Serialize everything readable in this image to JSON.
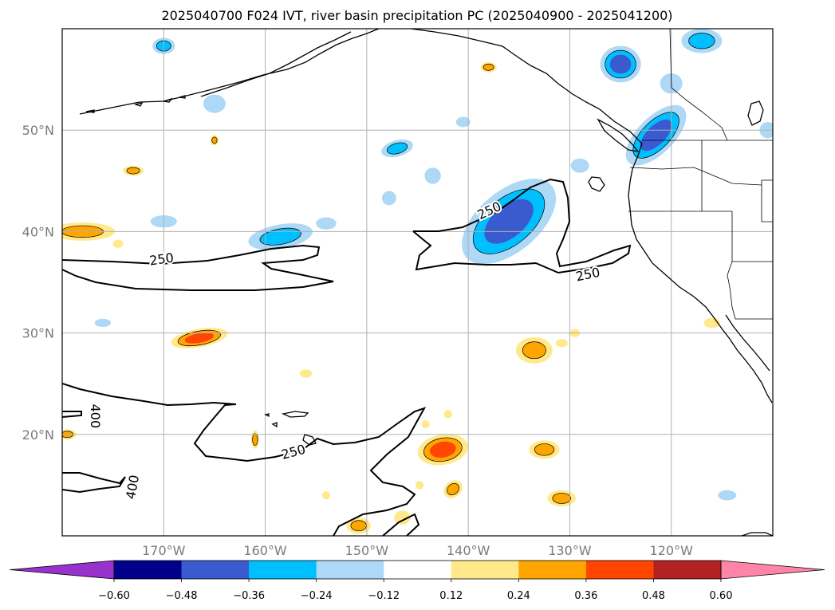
{
  "title": "2025040700 F024 IVT, river basin precipitation PC (2025040900 - 2025041200)",
  "map": {
    "lon_range": [
      -180,
      -110
    ],
    "lat_range": [
      10,
      60
    ],
    "lon_ticks": [
      {
        "value": -170,
        "label": "170°W"
      },
      {
        "value": -160,
        "label": "160°W"
      },
      {
        "value": -150,
        "label": "150°W"
      },
      {
        "value": -140,
        "label": "140°W"
      },
      {
        "value": -130,
        "label": "130°W"
      },
      {
        "value": -120,
        "label": "120°W"
      }
    ],
    "lat_ticks": [
      {
        "value": 50,
        "label": "50°N"
      },
      {
        "value": 40,
        "label": "40°N"
      },
      {
        "value": 30,
        "label": "30°N"
      },
      {
        "value": 20,
        "label": "20°N"
      }
    ],
    "contour_labels": [
      {
        "text": "250",
        "lon": -170.2,
        "lat": 37.2,
        "angle": -8
      },
      {
        "text": "250",
        "lon": -137.9,
        "lat": 42.0,
        "angle": -25
      },
      {
        "text": "250",
        "lon": -128.2,
        "lat": 35.7,
        "angle": -12
      },
      {
        "text": "250",
        "lon": -157.2,
        "lat": 18.2,
        "angle": -15
      },
      {
        "text": "400",
        "lon": -176.8,
        "lat": 21.8,
        "angle": 90
      },
      {
        "text": "400",
        "lon": -173.0,
        "lat": 14.8,
        "angle": -80
      }
    ]
  },
  "colorbar": {
    "ticks": [
      "−0.60",
      "−0.48",
      "−0.36",
      "−0.24",
      "−0.12",
      "0.12",
      "0.24",
      "0.36",
      "0.48",
      "0.60"
    ],
    "colors": [
      "#9932cc",
      "#00008b",
      "#3a5bd0",
      "#00bfff",
      "#add8f6",
      "#ffffff",
      "#ffe98a",
      "#ffa500",
      "#ff4500",
      "#b22222",
      "#ff85a8"
    ]
  },
  "chart_data": {
    "type": "heatmap",
    "title": "2025040700 F024 IVT, river basin precipitation PC (2025040900 - 2025041200)",
    "x_range": [
      -180,
      -110
    ],
    "y_range": [
      10,
      60
    ],
    "contour_levels_labeled": [
      250,
      400
    ],
    "colorbar_levels": [
      -0.6,
      -0.48,
      -0.36,
      -0.24,
      -0.12,
      0.12,
      0.24,
      0.36,
      0.48,
      0.6
    ],
    "features": [
      {
        "sign": "negative",
        "lon": -136,
        "lat": 41,
        "rx": 5.5,
        "ry": 3,
        "angle": -40,
        "levels": 3
      },
      {
        "sign": "negative",
        "lon": -158.5,
        "lat": 39.5,
        "rx": 3.2,
        "ry": 1.2,
        "angle": -10,
        "levels": 2
      },
      {
        "sign": "negative",
        "lon": -125,
        "lat": 56.5,
        "rx": 2,
        "ry": 1.8,
        "angle": 0,
        "levels": 3
      },
      {
        "sign": "negative",
        "lon": -121.5,
        "lat": 49.5,
        "rx": 3.8,
        "ry": 1.8,
        "angle": -45,
        "levels": 3
      },
      {
        "sign": "negative",
        "lon": -117,
        "lat": 58.8,
        "rx": 2,
        "ry": 1.2,
        "angle": 0,
        "levels": 2
      },
      {
        "sign": "negative",
        "lon": -154,
        "lat": 40.8,
        "rx": 1,
        "ry": 0.6,
        "angle": 0,
        "levels": 1
      },
      {
        "sign": "negative",
        "lon": -170,
        "lat": 41,
        "rx": 1.3,
        "ry": 0.6,
        "angle": 0,
        "levels": 1
      },
      {
        "sign": "negative",
        "lon": -165,
        "lat": 52.6,
        "rx": 1.1,
        "ry": 0.9,
        "angle": 0,
        "levels": 1
      },
      {
        "sign": "negative",
        "lon": -170,
        "lat": 58.3,
        "rx": 1.1,
        "ry": 0.8,
        "angle": 0,
        "levels": 2
      },
      {
        "sign": "negative",
        "lon": -147,
        "lat": 48.2,
        "rx": 1.6,
        "ry": 0.8,
        "angle": -15,
        "levels": 2
      },
      {
        "sign": "negative",
        "lon": -143.5,
        "lat": 45.5,
        "rx": 0.8,
        "ry": 0.8,
        "angle": 0,
        "levels": 1
      },
      {
        "sign": "negative",
        "lon": -147.8,
        "lat": 43.3,
        "rx": 0.7,
        "ry": 0.7,
        "angle": 0,
        "levels": 1
      },
      {
        "sign": "negative",
        "lon": -140.5,
        "lat": 50.8,
        "rx": 0.7,
        "ry": 0.5,
        "angle": 0,
        "levels": 1
      },
      {
        "sign": "negative",
        "lon": -129,
        "lat": 46.5,
        "rx": 0.9,
        "ry": 0.7,
        "angle": 0,
        "levels": 1
      },
      {
        "sign": "negative",
        "lon": -120,
        "lat": 54.6,
        "rx": 1.1,
        "ry": 1,
        "angle": 0,
        "levels": 1
      },
      {
        "sign": "negative",
        "lon": -110.5,
        "lat": 50,
        "rx": 0.8,
        "ry": 0.8,
        "angle": 0,
        "levels": 1
      },
      {
        "sign": "negative",
        "lon": -114.5,
        "lat": 14,
        "rx": 0.9,
        "ry": 0.5,
        "angle": 0,
        "levels": 1
      },
      {
        "sign": "negative",
        "lon": -176,
        "lat": 31,
        "rx": 0.8,
        "ry": 0.4,
        "angle": 0,
        "levels": 1
      },
      {
        "sign": "positive",
        "lon": -166.5,
        "lat": 29.5,
        "rx": 2.8,
        "ry": 0.9,
        "angle": -10,
        "levels": 3
      },
      {
        "sign": "positive",
        "lon": -178,
        "lat": 40,
        "rx": 3.2,
        "ry": 0.9,
        "angle": 0,
        "levels": 2
      },
      {
        "sign": "positive",
        "lon": -142.5,
        "lat": 18.5,
        "rx": 2.5,
        "ry": 1.5,
        "angle": -10,
        "levels": 3
      },
      {
        "sign": "positive",
        "lon": -133.5,
        "lat": 28.3,
        "rx": 1.8,
        "ry": 1.3,
        "angle": 0,
        "levels": 2
      },
      {
        "sign": "positive",
        "lon": -132.5,
        "lat": 18.5,
        "rx": 1.5,
        "ry": 0.9,
        "angle": 0,
        "levels": 2
      },
      {
        "sign": "positive",
        "lon": -130.8,
        "lat": 13.7,
        "rx": 1.4,
        "ry": 0.8,
        "angle": 0,
        "levels": 2
      },
      {
        "sign": "positive",
        "lon": -141.5,
        "lat": 14.6,
        "rx": 1,
        "ry": 0.8,
        "angle": -40,
        "levels": 2
      },
      {
        "sign": "positive",
        "lon": -173,
        "lat": 46,
        "rx": 1,
        "ry": 0.5,
        "angle": 0,
        "levels": 2
      },
      {
        "sign": "positive",
        "lon": -138,
        "lat": 56.2,
        "rx": 0.8,
        "ry": 0.5,
        "angle": 0,
        "levels": 2
      },
      {
        "sign": "positive",
        "lon": -179.5,
        "lat": 20,
        "rx": 0.9,
        "ry": 0.5,
        "angle": 0,
        "levels": 2
      },
      {
        "sign": "positive",
        "lon": -150.8,
        "lat": 11,
        "rx": 1.2,
        "ry": 0.8,
        "angle": 0,
        "levels": 2
      },
      {
        "sign": "positive",
        "lon": -146.5,
        "lat": 11.8,
        "rx": 0.8,
        "ry": 0.7,
        "angle": 0,
        "levels": 1
      },
      {
        "sign": "positive",
        "lon": -161,
        "lat": 19.5,
        "rx": 0.4,
        "ry": 0.9,
        "angle": 0,
        "levels": 2
      },
      {
        "sign": "positive",
        "lon": -116,
        "lat": 31,
        "rx": 0.8,
        "ry": 0.5,
        "angle": 0,
        "levels": 1
      },
      {
        "sign": "positive",
        "lon": -129.5,
        "lat": 30,
        "rx": 0.5,
        "ry": 0.4,
        "angle": 0,
        "levels": 1
      },
      {
        "sign": "positive",
        "lon": -130.8,
        "lat": 29,
        "rx": 0.6,
        "ry": 0.4,
        "angle": 0,
        "levels": 1
      },
      {
        "sign": "positive",
        "lon": -156,
        "lat": 26,
        "rx": 0.6,
        "ry": 0.4,
        "angle": 0,
        "levels": 1
      },
      {
        "sign": "positive",
        "lon": -144.2,
        "lat": 21,
        "rx": 0.4,
        "ry": 0.4,
        "angle": 0,
        "levels": 1
      },
      {
        "sign": "positive",
        "lon": -142,
        "lat": 22,
        "rx": 0.4,
        "ry": 0.4,
        "angle": 0,
        "levels": 1
      },
      {
        "sign": "positive",
        "lon": -165,
        "lat": 49,
        "rx": 0.4,
        "ry": 0.5,
        "angle": 0,
        "levels": 2
      },
      {
        "sign": "positive",
        "lon": -144.8,
        "lat": 15,
        "rx": 0.4,
        "ry": 0.4,
        "angle": 0,
        "levels": 1
      },
      {
        "sign": "positive",
        "lon": -154,
        "lat": 14,
        "rx": 0.4,
        "ry": 0.4,
        "angle": 0,
        "levels": 1
      },
      {
        "sign": "positive",
        "lon": -174.5,
        "lat": 38.8,
        "rx": 0.5,
        "ry": 0.4,
        "angle": 0,
        "levels": 1
      }
    ]
  }
}
